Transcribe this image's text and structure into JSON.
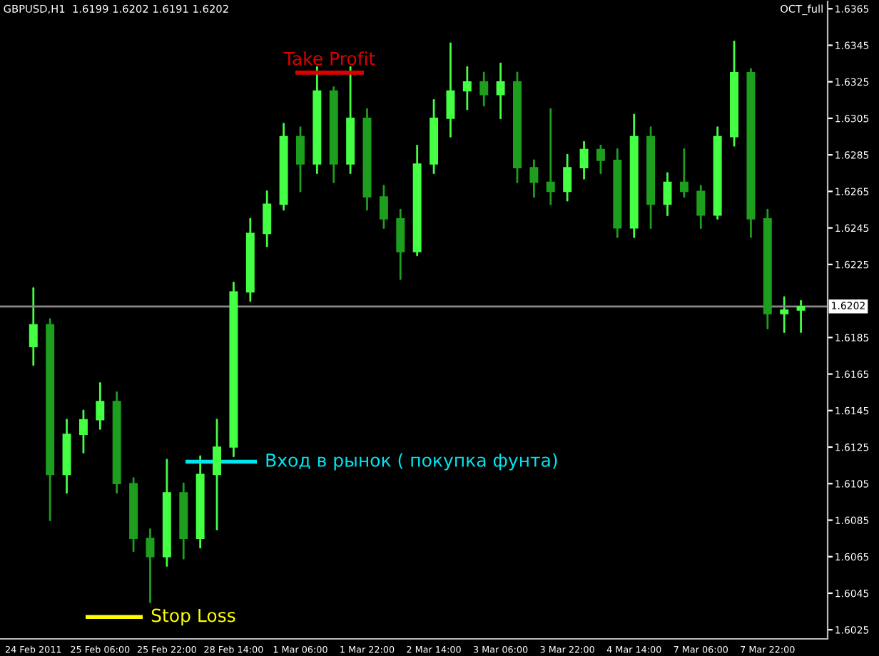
{
  "chart_data": {
    "type": "candlestick",
    "title": "GBPUSD,H1  1.6199 1.6202 1.6191 1.6202",
    "colors": [
      "#44ff44",
      "#1e9e1e",
      "#44ff44",
      "#44ff44",
      "#44ff44",
      "#1e9e1e",
      "#1e9e1e",
      "#1e9e1e",
      "#44ff44",
      "#1e9e1e",
      "#44ff44",
      "#44ff44",
      "#44ff44",
      "#44ff44",
      "#44ff44",
      "#44ff44",
      "#1e9e1e",
      "#44ff44",
      "#1e9e1e",
      "#44ff44",
      "#1e9e1e",
      "#1e9e1e",
      "#1e9e1e",
      "#44ff44",
      "#44ff44",
      "#44ff44",
      "#44ff44",
      "#1e9e1e",
      "#44ff44",
      "#1e9e1e",
      "#1e9e1e",
      "#1e9e1e",
      "#44ff44",
      "#44ff44",
      "#1e9e1e",
      "#1e9e1e",
      "#44ff44",
      "#1e9e1e",
      "#44ff44",
      "#1e9e1e",
      "#1e9e1e",
      "#44ff44",
      "#44ff44",
      "#1e9e1e",
      "#1e9e1e",
      "#44ff44",
      "#44ff44"
    ],
    "grid": false,
    "legend": false,
    "categories": [
      "24 Feb 2011",
      null,
      null,
      null,
      "25 Feb 06:00",
      null,
      null,
      null,
      "25 Feb 22:00",
      null,
      null,
      null,
      "28 Feb 14:00",
      null,
      null,
      null,
      "1 Mar 06:00",
      null,
      null,
      null,
      "1 Mar 22:00",
      null,
      null,
      null,
      "2 Mar 14:00",
      null,
      null,
      null,
      "3 Mar 06:00",
      null,
      null,
      null,
      "3 Mar 22:00",
      null,
      null,
      null,
      "4 Mar 14:00",
      null,
      null,
      null,
      "7 Mar 06:00",
      null,
      null,
      null,
      "7 Mar 22:00",
      null,
      null
    ],
    "ohlc": [
      [
        1.618,
        1.6212,
        1.617,
        1.6192
      ],
      [
        1.6192,
        1.6195,
        1.6085,
        1.611
      ],
      [
        1.611,
        1.614,
        1.61,
        1.6132
      ],
      [
        1.6132,
        1.6145,
        1.6122,
        1.614
      ],
      [
        1.614,
        1.616,
        1.6135,
        1.615
      ],
      [
        1.615,
        1.6155,
        1.61,
        1.6105
      ],
      [
        1.6105,
        1.6108,
        1.6068,
        1.6075
      ],
      [
        1.6075,
        1.608,
        1.604,
        1.6065
      ],
      [
        1.6065,
        1.6118,
        1.606,
        1.61
      ],
      [
        1.61,
        1.6105,
        1.6064,
        1.6075
      ],
      [
        1.6075,
        1.612,
        1.607,
        1.611
      ],
      [
        1.611,
        1.614,
        1.608,
        1.6125
      ],
      [
        1.6125,
        1.6215,
        1.612,
        1.621
      ],
      [
        1.621,
        1.625,
        1.6205,
        1.6242
      ],
      [
        1.6242,
        1.6265,
        1.6235,
        1.6258
      ],
      [
        1.6258,
        1.6302,
        1.6255,
        1.6295
      ],
      [
        1.6295,
        1.63,
        1.6265,
        1.628
      ],
      [
        1.628,
        1.6333,
        1.6275,
        1.632
      ],
      [
        1.632,
        1.6322,
        1.627,
        1.628
      ],
      [
        1.628,
        1.6333,
        1.6275,
        1.6305
      ],
      [
        1.6305,
        1.631,
        1.6255,
        1.6262
      ],
      [
        1.6262,
        1.6268,
        1.6245,
        1.625
      ],
      [
        1.625,
        1.6255,
        1.6217,
        1.6232
      ],
      [
        1.6232,
        1.629,
        1.623,
        1.628
      ],
      [
        1.628,
        1.6315,
        1.6275,
        1.6305
      ],
      [
        1.6305,
        1.6346,
        1.6295,
        1.632
      ],
      [
        1.632,
        1.6333,
        1.631,
        1.6325
      ],
      [
        1.6325,
        1.633,
        1.6312,
        1.6318
      ],
      [
        1.6318,
        1.6335,
        1.6305,
        1.6325
      ],
      [
        1.6325,
        1.633,
        1.627,
        1.6278
      ],
      [
        1.6278,
        1.6282,
        1.6262,
        1.627
      ],
      [
        1.627,
        1.631,
        1.6258,
        1.6265
      ],
      [
        1.6265,
        1.6285,
        1.626,
        1.6278
      ],
      [
        1.6278,
        1.6292,
        1.6272,
        1.6288
      ],
      [
        1.6288,
        1.629,
        1.6275,
        1.6282
      ],
      [
        1.6282,
        1.6288,
        1.624,
        1.6245
      ],
      [
        1.6245,
        1.6307,
        1.624,
        1.6295
      ],
      [
        1.6295,
        1.63,
        1.6245,
        1.6258
      ],
      [
        1.6258,
        1.6275,
        1.6252,
        1.627
      ],
      [
        1.627,
        1.6288,
        1.6262,
        1.6265
      ],
      [
        1.6265,
        1.6268,
        1.6245,
        1.6252
      ],
      [
        1.6252,
        1.63,
        1.625,
        1.6295
      ],
      [
        1.6295,
        1.6347,
        1.629,
        1.633
      ],
      [
        1.633,
        1.6332,
        1.624,
        1.625
      ],
      [
        1.625,
        1.6255,
        1.619,
        1.6198
      ],
      [
        1.6198,
        1.6207,
        1.6188,
        1.62
      ],
      [
        1.62,
        1.6205,
        1.6188,
        1.6202
      ]
    ],
    "annotations": [
      "OCT_full"
    ],
    "ref_lines": [
      {
        "axis": "y",
        "value": 1.6202,
        "label": "1.6202",
        "color": "#888888"
      },
      {
        "axis": "y",
        "value": 1.633,
        "label": "Take Profit",
        "color": "#dd0000"
      },
      {
        "axis": "y",
        "value": 1.6032,
        "label": "Stop Loss",
        "color": "#ffff00"
      },
      {
        "axis": "y",
        "value": 1.6117,
        "label": "Вход в рынок ( покупка фунта)",
        "color": "#00e5ee"
      }
    ],
    "ylim": [
      1.602,
      1.6369
    ],
    "yticks": [
      1.6025,
      1.6045,
      1.6065,
      1.6085,
      1.6105,
      1.6125,
      1.6145,
      1.6165,
      1.6185,
      1.6225,
      1.6245,
      1.6265,
      1.6285,
      1.6305,
      1.6325,
      1.6345,
      1.6365
    ]
  }
}
